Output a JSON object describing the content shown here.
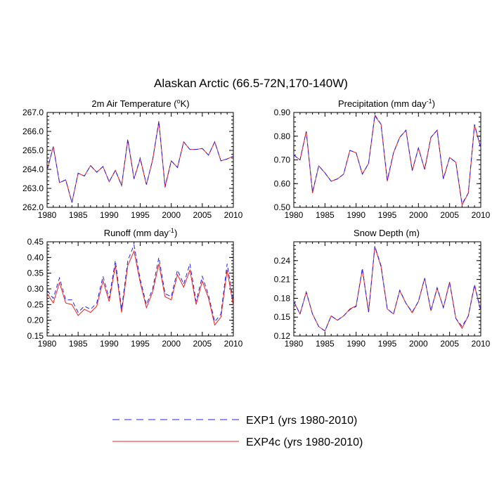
{
  "title": "Alaskan Arctic (66.5-72N,170-140W)",
  "colors": {
    "exp1": "#2222ee",
    "exp4c": "#ee2222"
  },
  "legend": {
    "exp1": "EXP1 (yrs 1980-2010)",
    "exp4c": "EXP4c (yrs 1980-2010)"
  },
  "chart_data": [
    {
      "type": "line",
      "title_main": "2m Air Temperature (",
      "title_sup": "o",
      "title_end": "K)",
      "x": [
        1980,
        1981,
        1982,
        1983,
        1984,
        1985,
        1986,
        1987,
        1988,
        1989,
        1990,
        1991,
        1992,
        1993,
        1994,
        1995,
        1996,
        1997,
        1998,
        1999,
        2000,
        2001,
        2002,
        2003,
        2004,
        2005,
        2006,
        2007,
        2008,
        2009,
        2010
      ],
      "xlim": [
        1980,
        2010
      ],
      "xticks": [
        "1980",
        "1985",
        "1990",
        "1995",
        "2000",
        "2005",
        "2010"
      ],
      "ylim": [
        262.0,
        267.0
      ],
      "yticks": [
        "262.0",
        "263.0",
        "264.0",
        "265.0",
        "266.0",
        "267.0"
      ],
      "series": [
        {
          "name": "EXP1",
          "values": [
            263.95,
            265.2,
            263.3,
            263.45,
            262.25,
            263.8,
            263.65,
            264.2,
            263.85,
            264.15,
            263.35,
            263.95,
            263.15,
            265.6,
            263.5,
            264.6,
            263.2,
            264.5,
            266.55,
            263.05,
            264.45,
            264.1,
            265.45,
            265.05,
            265.05,
            265.1,
            264.75,
            265.45,
            264.45,
            264.55,
            264.7
          ]
        },
        {
          "name": "EXP4c",
          "values": [
            263.95,
            265.2,
            263.3,
            263.45,
            262.25,
            263.8,
            263.65,
            264.2,
            263.85,
            264.15,
            263.35,
            263.95,
            263.15,
            265.55,
            263.5,
            264.55,
            263.2,
            264.5,
            266.5,
            263.1,
            264.45,
            264.1,
            265.45,
            265.05,
            265.05,
            265.1,
            264.75,
            265.45,
            264.45,
            264.55,
            264.7
          ]
        }
      ]
    },
    {
      "type": "line",
      "title_main": "Precipitation (mm day",
      "title_sup": "-1",
      "title_end": ")",
      "x": [
        1980,
        1981,
        1982,
        1983,
        1984,
        1985,
        1986,
        1987,
        1988,
        1989,
        1990,
        1991,
        1992,
        1993,
        1994,
        1995,
        1996,
        1997,
        1998,
        1999,
        2000,
        2001,
        2002,
        2003,
        2004,
        2005,
        2006,
        2007,
        2008,
        2009,
        2010
      ],
      "xlim": [
        1980,
        2010
      ],
      "xticks": [
        "1980",
        "1985",
        "1990",
        "1995",
        "2000",
        "2005",
        "2010"
      ],
      "ylim": [
        0.5,
        0.9
      ],
      "yticks": [
        "0.50",
        "0.60",
        "0.70",
        "0.80",
        "0.90"
      ],
      "series": [
        {
          "name": "EXP1",
          "values": [
            0.72,
            0.7,
            0.82,
            0.565,
            0.675,
            0.645,
            0.61,
            0.62,
            0.64,
            0.74,
            0.73,
            0.64,
            0.685,
            0.89,
            0.85,
            0.615,
            0.73,
            0.795,
            0.825,
            0.655,
            0.75,
            0.66,
            0.795,
            0.825,
            0.62,
            0.71,
            0.69,
            0.515,
            0.56,
            0.85,
            0.75
          ]
        },
        {
          "name": "EXP4c",
          "values": [
            0.72,
            0.7,
            0.82,
            0.56,
            0.675,
            0.645,
            0.61,
            0.62,
            0.64,
            0.74,
            0.73,
            0.64,
            0.685,
            0.885,
            0.85,
            0.61,
            0.73,
            0.795,
            0.825,
            0.655,
            0.75,
            0.66,
            0.795,
            0.825,
            0.62,
            0.71,
            0.69,
            0.51,
            0.56,
            0.845,
            0.75
          ]
        }
      ]
    },
    {
      "type": "line",
      "title_main": "Runoff (mm day",
      "title_sup": "-1",
      "title_end": ")",
      "x": [
        1980,
        1981,
        1982,
        1983,
        1984,
        1985,
        1986,
        1987,
        1988,
        1989,
        1990,
        1991,
        1992,
        1993,
        1994,
        1995,
        1996,
        1997,
        1998,
        1999,
        2000,
        2001,
        2002,
        2003,
        2004,
        2005,
        2006,
        2007,
        2008,
        2009,
        2010
      ],
      "xlim": [
        1980,
        2010
      ],
      "xticks": [
        "1980",
        "1985",
        "1990",
        "1995",
        "2000",
        "2005",
        "2010"
      ],
      "ylim": [
        0.15,
        0.45
      ],
      "yticks": [
        "0.15",
        "0.20",
        "0.25",
        "0.30",
        "0.35",
        "0.40",
        "0.45"
      ],
      "series": [
        {
          "name": "EXP1",
          "values": [
            0.295,
            0.27,
            0.335,
            0.265,
            0.265,
            0.225,
            0.245,
            0.235,
            0.255,
            0.34,
            0.27,
            0.39,
            0.235,
            0.39,
            0.44,
            0.33,
            0.25,
            0.3,
            0.4,
            0.285,
            0.275,
            0.36,
            0.315,
            0.38,
            0.26,
            0.34,
            0.28,
            0.195,
            0.22,
            0.38,
            0.26
          ]
        },
        {
          "name": "EXP4c",
          "values": [
            0.285,
            0.255,
            0.32,
            0.255,
            0.25,
            0.215,
            0.235,
            0.225,
            0.245,
            0.325,
            0.26,
            0.375,
            0.225,
            0.375,
            0.42,
            0.32,
            0.24,
            0.29,
            0.38,
            0.275,
            0.265,
            0.345,
            0.305,
            0.36,
            0.25,
            0.325,
            0.27,
            0.185,
            0.21,
            0.36,
            0.245
          ]
        }
      ]
    },
    {
      "type": "line",
      "title_main": "Snow Depth (m)",
      "title_sup": "",
      "title_end": "",
      "x": [
        1980,
        1981,
        1982,
        1983,
        1984,
        1985,
        1986,
        1987,
        1988,
        1989,
        1990,
        1991,
        1992,
        1993,
        1994,
        1995,
        1996,
        1997,
        1998,
        1999,
        2000,
        2001,
        2002,
        2003,
        2004,
        2005,
        2006,
        2007,
        2008,
        2009,
        2010
      ],
      "xlim": [
        1980,
        2010
      ],
      "xticks": [
        "1980",
        "1985",
        "1990",
        "1995",
        "2000",
        "2005",
        "2010"
      ],
      "ylim": [
        0.12,
        0.27
      ],
      "yticks": [
        "0.12",
        "0.15",
        "0.18",
        "0.21",
        "0.24"
      ],
      "series": [
        {
          "name": "EXP1",
          "values": [
            0.175,
            0.155,
            0.19,
            0.155,
            0.135,
            0.128,
            0.152,
            0.145,
            0.152,
            0.162,
            0.167,
            0.228,
            0.158,
            0.263,
            0.232,
            0.163,
            0.155,
            0.193,
            0.172,
            0.158,
            0.175,
            0.212,
            0.16,
            0.197,
            0.165,
            0.205,
            0.148,
            0.135,
            0.152,
            0.202,
            0.16
          ]
        },
        {
          "name": "EXP4c",
          "values": [
            0.175,
            0.155,
            0.19,
            0.155,
            0.135,
            0.128,
            0.152,
            0.145,
            0.152,
            0.163,
            0.168,
            0.226,
            0.158,
            0.262,
            0.23,
            0.163,
            0.155,
            0.192,
            0.172,
            0.157,
            0.175,
            0.212,
            0.16,
            0.196,
            0.165,
            0.206,
            0.148,
            0.132,
            0.152,
            0.2,
            0.16
          ]
        }
      ]
    }
  ]
}
